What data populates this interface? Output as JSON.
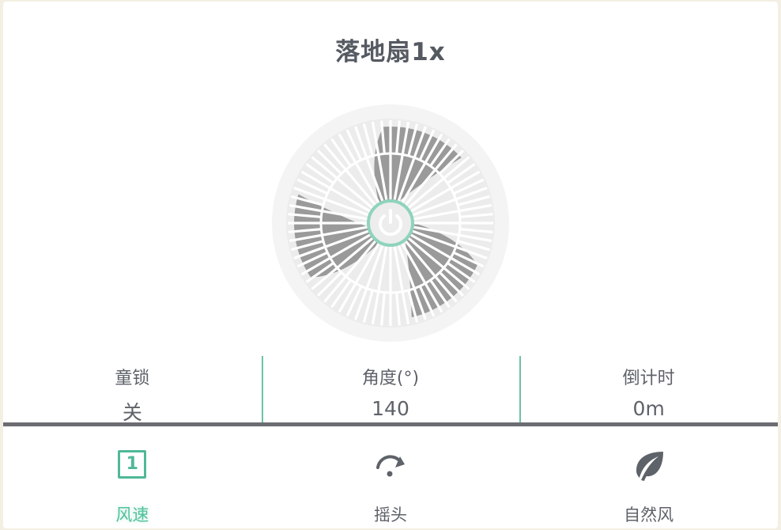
{
  "device": {
    "title": "落地扇1x"
  },
  "colors": {
    "accent": "#4fc29a",
    "text": "#5e6269",
    "divider": "#6b6d72"
  },
  "stats": [
    {
      "label": "童锁",
      "value": "关"
    },
    {
      "label": "角度(°)",
      "value": "140"
    },
    {
      "label": "倒计时",
      "value": "0m"
    }
  ],
  "controls": [
    {
      "label": "风速",
      "icon": "speed-level-icon",
      "level": "1",
      "active": true
    },
    {
      "label": "摇头",
      "icon": "oscillate-icon",
      "active": false
    },
    {
      "label": "自然风",
      "icon": "leaf-icon",
      "active": false
    }
  ]
}
